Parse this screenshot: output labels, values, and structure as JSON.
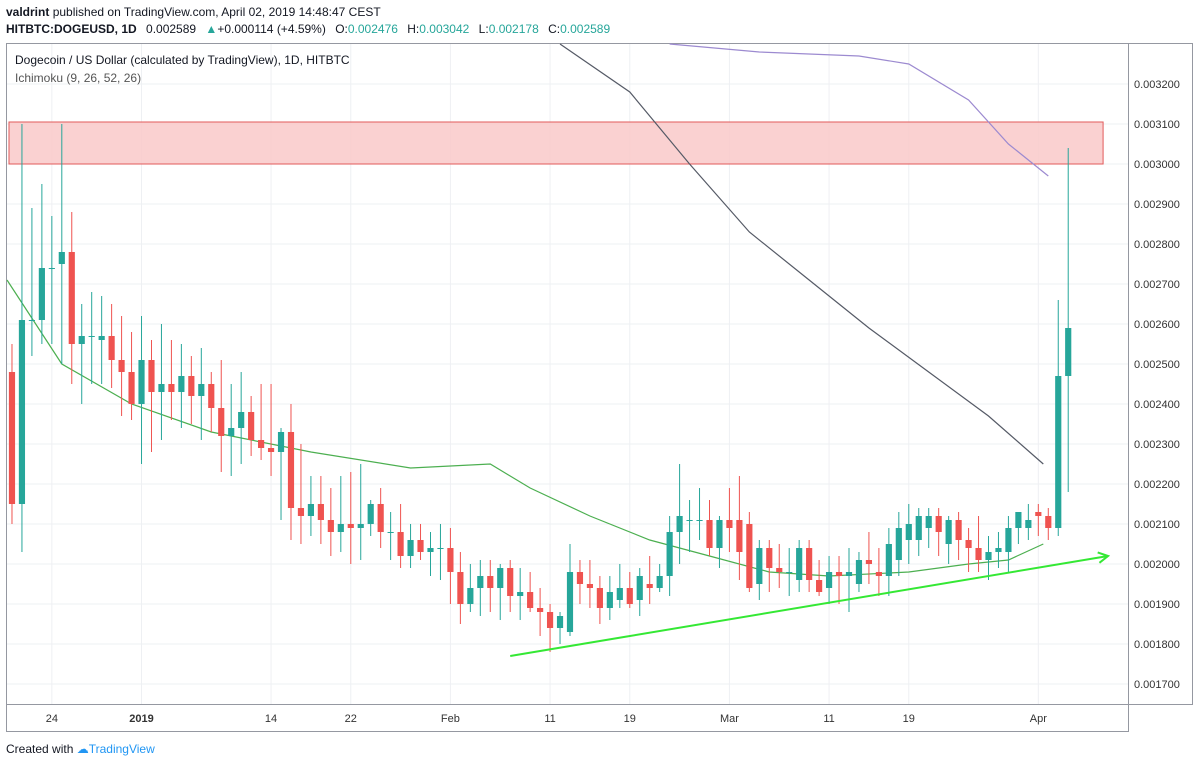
{
  "header": {
    "author": "valdrint",
    "published_text": "published on TradingView.com, April 02, 2019 14:48:47 CEST",
    "symbol": "HITBTC:DOGEUSD, 1D",
    "last": "0.002589",
    "change": "+0.000114 (+4.59%)",
    "open_label": "O:",
    "open_value": "0.002476",
    "high_label": "H:",
    "high_value": "0.003042",
    "low_label": "L:",
    "low_value": "0.002178",
    "close_label": "C:",
    "close_value": "0.002589"
  },
  "legend": {
    "title": "Dogecoin / US Dollar (calculated by TradingView), 1D, HITBTC",
    "indicator": "Ichimoku (9, 26, 52, 26)"
  },
  "footer": {
    "created_with": "Created with",
    "brand": "TradingView"
  },
  "colors": {
    "up": "#26a69a",
    "down": "#ef5350",
    "trendline": "#34e834",
    "ma_green": "#4caf50",
    "ma_dark": "#555a66",
    "ma_purple": "#9c8ad0",
    "zone_fill": "#f9c9c9",
    "zone_border": "#e15a5a"
  },
  "chart_data": {
    "type": "candlestick",
    "y_axis": {
      "range": [
        0.00165,
        0.0033
      ],
      "ticks": [
        "0.001700",
        "0.001800",
        "0.001900",
        "0.002000",
        "0.002100",
        "0.002200",
        "0.002300",
        "0.002400",
        "0.002500",
        "0.002600",
        "0.002700",
        "0.002800",
        "0.002900",
        "0.003000",
        "0.003100",
        "0.003200"
      ]
    },
    "x_axis": {
      "ticks": [
        {
          "label": "24",
          "day": 4,
          "bold": false
        },
        {
          "label": "2019",
          "day": 13,
          "bold": true
        },
        {
          "label": "14",
          "day": 26,
          "bold": false
        },
        {
          "label": "22",
          "day": 34,
          "bold": false
        },
        {
          "label": "Feb",
          "day": 44,
          "bold": false
        },
        {
          "label": "11",
          "day": 54,
          "bold": false
        },
        {
          "label": "19",
          "day": 62,
          "bold": false
        },
        {
          "label": "Mar",
          "day": 72,
          "bold": false
        },
        {
          "label": "11",
          "day": 82,
          "bold": false
        },
        {
          "label": "19",
          "day": 90,
          "bold": false
        },
        {
          "label": "Apr",
          "day": 103,
          "bold": false
        }
      ],
      "day_range": [
        -0.5,
        112
      ]
    },
    "candles": [
      [
        0.00248,
        0.00255,
        0.0021,
        0.00215
      ],
      [
        0.00215,
        0.0031,
        0.00203,
        0.00261
      ],
      [
        0.00261,
        0.00289,
        0.00252,
        0.00261
      ],
      [
        0.00261,
        0.00295,
        0.00255,
        0.00274
      ],
      [
        0.00274,
        0.00287,
        0.00255,
        0.00274
      ],
      [
        0.00275,
        0.0031,
        0.0025,
        0.00278
      ],
      [
        0.00278,
        0.00288,
        0.00245,
        0.00255
      ],
      [
        0.00255,
        0.00265,
        0.0024,
        0.00257
      ],
      [
        0.00257,
        0.00268,
        0.00245,
        0.00257
      ],
      [
        0.00256,
        0.00267,
        0.00245,
        0.00257
      ],
      [
        0.00257,
        0.00265,
        0.00244,
        0.00251
      ],
      [
        0.00251,
        0.00262,
        0.00237,
        0.00248
      ],
      [
        0.00248,
        0.00258,
        0.00236,
        0.0024
      ],
      [
        0.0024,
        0.00262,
        0.00225,
        0.00251
      ],
      [
        0.00251,
        0.00256,
        0.00228,
        0.00243
      ],
      [
        0.00243,
        0.0026,
        0.00231,
        0.00245
      ],
      [
        0.00245,
        0.00256,
        0.00236,
        0.00243
      ],
      [
        0.00243,
        0.00255,
        0.00234,
        0.00247
      ],
      [
        0.00247,
        0.00252,
        0.00235,
        0.00242
      ],
      [
        0.00242,
        0.00254,
        0.00231,
        0.00245
      ],
      [
        0.00245,
        0.00248,
        0.00233,
        0.00239
      ],
      [
        0.00239,
        0.00251,
        0.00223,
        0.00232
      ],
      [
        0.00232,
        0.00245,
        0.00222,
        0.00234
      ],
      [
        0.00234,
        0.00248,
        0.00225,
        0.00238
      ],
      [
        0.00238,
        0.00242,
        0.00227,
        0.00231
      ],
      [
        0.00231,
        0.00245,
        0.00226,
        0.00229
      ],
      [
        0.00229,
        0.00245,
        0.00222,
        0.00228
      ],
      [
        0.00228,
        0.00234,
        0.00211,
        0.00233
      ],
      [
        0.00233,
        0.0024,
        0.00206,
        0.00214
      ],
      [
        0.00214,
        0.0023,
        0.00205,
        0.00212
      ],
      [
        0.00212,
        0.00222,
        0.00207,
        0.00215
      ],
      [
        0.00215,
        0.00222,
        0.00205,
        0.00211
      ],
      [
        0.00211,
        0.00219,
        0.00202,
        0.00208
      ]
    ],
    "candles_2": [
      [
        0.00208,
        0.00222,
        0.00203,
        0.0021
      ],
      [
        0.0021,
        0.00223,
        0.002,
        0.00209
      ],
      [
        0.00209,
        0.00225,
        0.00201,
        0.0021
      ],
      [
        0.0021,
        0.00216,
        0.00207,
        0.00215
      ],
      [
        0.00215,
        0.00219,
        0.00204,
        0.00208
      ],
      [
        0.00208,
        0.00213,
        0.00201,
        0.00208
      ],
      [
        0.00208,
        0.00215,
        0.00199,
        0.00202
      ],
      [
        0.00202,
        0.0021,
        0.00199,
        0.00206
      ],
      [
        0.00206,
        0.0021,
        0.00201,
        0.00203
      ],
      [
        0.00203,
        0.00208,
        0.00197,
        0.00204
      ],
      [
        0.00204,
        0.0021,
        0.00196,
        0.00204
      ],
      [
        0.00204,
        0.00209,
        0.0019,
        0.00198
      ],
      [
        0.00198,
        0.00203,
        0.00185,
        0.0019
      ],
      [
        0.0019,
        0.002,
        0.00188,
        0.00194
      ],
      [
        0.00194,
        0.00201,
        0.00187,
        0.00197
      ],
      [
        0.00197,
        0.00201,
        0.00188,
        0.00194
      ],
      [
        0.00194,
        0.002,
        0.00186,
        0.00199
      ],
      [
        0.00199,
        0.00201,
        0.00188,
        0.00192
      ],
      [
        0.00192,
        0.00199,
        0.00186,
        0.00193
      ],
      [
        0.00193,
        0.00198,
        0.00188,
        0.00189
      ],
      [
        0.00189,
        0.00194,
        0.00182,
        0.00188
      ],
      [
        0.00188,
        0.0019,
        0.00178,
        0.00184
      ],
      [
        0.00184,
        0.00188,
        0.0018,
        0.00187
      ],
      [
        0.00183,
        0.00205,
        0.00182,
        0.00198
      ],
      [
        0.00198,
        0.00201,
        0.0019,
        0.00195
      ],
      [
        0.00195,
        0.00201,
        0.00189,
        0.00194
      ],
      [
        0.00194,
        0.00197,
        0.00185,
        0.00189
      ],
      [
        0.00189,
        0.00197,
        0.00186,
        0.00193
      ],
      [
        0.00191,
        0.002,
        0.00189,
        0.00194
      ],
      [
        0.00194,
        0.00198,
        0.00189,
        0.0019
      ],
      [
        0.00191,
        0.00199,
        0.00187,
        0.00197
      ],
      [
        0.00195,
        0.00202,
        0.0019,
        0.00194
      ],
      [
        0.00194,
        0.002,
        0.00193,
        0.00197
      ],
      [
        0.00197,
        0.00212,
        0.00192,
        0.00208
      ],
      [
        0.00208,
        0.00225,
        0.002,
        0.00212
      ],
      [
        0.00211,
        0.00216,
        0.00203,
        0.00211
      ],
      [
        0.00211,
        0.00219,
        0.00206,
        0.00211
      ],
      [
        0.00211,
        0.00216,
        0.00202,
        0.00204
      ],
      [
        0.00204,
        0.00212,
        0.00199,
        0.00211
      ],
      [
        0.00211,
        0.00219,
        0.00203,
        0.00209
      ],
      [
        0.00211,
        0.00222,
        0.00196,
        0.00203
      ],
      [
        0.0021,
        0.00213,
        0.00193,
        0.00194
      ],
      [
        0.00195,
        0.00206,
        0.00191,
        0.00204
      ],
      [
        0.00204,
        0.00206,
        0.00193,
        0.00199
      ],
      [
        0.00199,
        0.00205,
        0.00194,
        0.00198
      ],
      [
        0.00198,
        0.00204,
        0.00192,
        0.00198
      ],
      [
        0.00196,
        0.00206,
        0.00193,
        0.00204
      ],
      [
        0.00204,
        0.00206,
        0.00193,
        0.00196
      ],
      [
        0.00196,
        0.00201,
        0.00192,
        0.00193
      ],
      [
        0.00194,
        0.00202,
        0.0019,
        0.00198
      ],
      [
        0.00198,
        0.00202,
        0.0019,
        0.00197
      ]
    ],
    "candles_3": [
      [
        0.00197,
        0.00204,
        0.00188,
        0.00198
      ],
      [
        0.00195,
        0.00203,
        0.00193,
        0.00201
      ],
      [
        0.00201,
        0.00208,
        0.00195,
        0.002
      ],
      [
        0.00198,
        0.00204,
        0.00192,
        0.00197
      ],
      [
        0.00197,
        0.00209,
        0.00192,
        0.00205
      ],
      [
        0.00201,
        0.00213,
        0.00197,
        0.00209
      ],
      [
        0.00206,
        0.00215,
        0.002,
        0.0021
      ],
      [
        0.00206,
        0.00214,
        0.00202,
        0.00212
      ],
      [
        0.00209,
        0.00214,
        0.00204,
        0.00212
      ],
      [
        0.00212,
        0.00214,
        0.00202,
        0.00208
      ],
      [
        0.00205,
        0.00212,
        0.002,
        0.00211
      ],
      [
        0.00211,
        0.00213,
        0.00201,
        0.00206
      ],
      [
        0.00206,
        0.00209,
        0.00198,
        0.00204
      ],
      [
        0.00204,
        0.00212,
        0.00198,
        0.00201
      ],
      [
        0.00201,
        0.00207,
        0.00196,
        0.00203
      ],
      [
        0.00203,
        0.00208,
        0.00199,
        0.00204
      ],
      [
        0.00203,
        0.00212,
        0.00198,
        0.00209
      ],
      [
        0.00209,
        0.00213,
        0.00205,
        0.00213
      ],
      [
        0.00209,
        0.00215,
        0.00206,
        0.00211
      ],
      [
        0.00213,
        0.00215,
        0.00207,
        0.00212
      ],
      [
        0.00212,
        0.00214,
        0.00206,
        0.00209
      ],
      [
        0.00209,
        0.00266,
        0.00207,
        0.00247
      ],
      [
        0.00247,
        0.00304,
        0.00218,
        0.00259
      ]
    ],
    "moving_averages": [
      {
        "color_key": "ma_green",
        "points": [
          [
            -0.5,
            0.00271
          ],
          [
            5,
            0.0025
          ],
          [
            12,
            0.0024
          ],
          [
            20,
            0.00233
          ],
          [
            30,
            0.00228
          ],
          [
            40,
            0.00224
          ],
          [
            48,
            0.00225
          ],
          [
            52,
            0.00219
          ],
          [
            58,
            0.00212
          ],
          [
            64,
            0.00206
          ],
          [
            70,
            0.00202
          ],
          [
            76,
            0.00198
          ],
          [
            82,
            0.00197
          ],
          [
            90,
            0.00198
          ],
          [
            96,
            0.002
          ],
          [
            100,
            0.00201
          ],
          [
            103.5,
            0.00205
          ]
        ]
      },
      {
        "color_key": "ma_dark",
        "points": [
          [
            55,
            0.0033
          ],
          [
            62,
            0.00318
          ],
          [
            68,
            0.003
          ],
          [
            74,
            0.00283
          ],
          [
            80,
            0.00271
          ],
          [
            86,
            0.00259
          ],
          [
            92,
            0.00248
          ],
          [
            98,
            0.00237
          ],
          [
            103.5,
            0.00225
          ]
        ]
      },
      {
        "color_key": "ma_purple",
        "points": [
          [
            66,
            0.0033
          ],
          [
            75,
            0.00328
          ],
          [
            85,
            0.00327
          ],
          [
            90,
            0.00325
          ],
          [
            96,
            0.00316
          ],
          [
            100,
            0.00305
          ],
          [
            104,
            0.00297
          ]
        ]
      }
    ],
    "resistance_zone": {
      "day_start": -0.3,
      "day_end": 109.5,
      "price_low": 0.003,
      "price_high": 0.003105
    },
    "trendline": {
      "day_start": 50,
      "price_start": 0.00177,
      "day_end": 110,
      "price_end": 0.00202
    }
  }
}
